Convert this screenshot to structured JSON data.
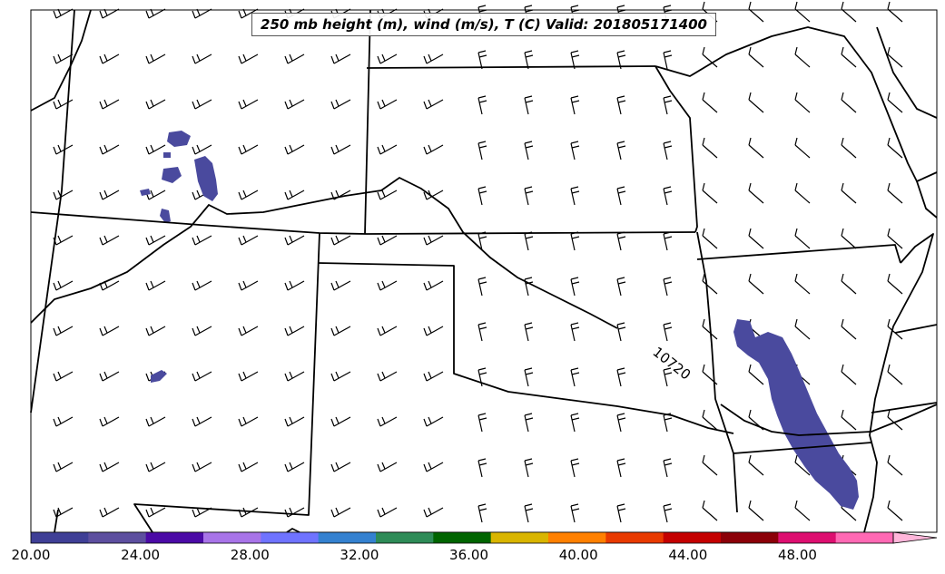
{
  "title": "250 mb height (m), wind (m/s), T (C) Valid: 201805171400",
  "contour_label": "10720",
  "colorbar": {
    "min": 20.0,
    "max": 51.5,
    "ticks": [
      "20.00",
      "24.00",
      "28.00",
      "32.00",
      "36.00",
      "40.00",
      "44.00",
      "48.00"
    ],
    "tick_values": [
      20,
      24,
      28,
      32,
      36,
      40,
      44,
      48
    ],
    "colors": [
      "#3f3f96",
      "#5d4f9f",
      "#4b0aa6",
      "#a874e8",
      "#6f73ff",
      "#3481d0",
      "#2e8b57",
      "#006400",
      "#d9b500",
      "#ff8000",
      "#e83a00",
      "#c40000",
      "#8b0008",
      "#dd0f70",
      "#ff69b4",
      "#ffb6da"
    ]
  },
  "shaded_color": "#4a4a9e"
}
